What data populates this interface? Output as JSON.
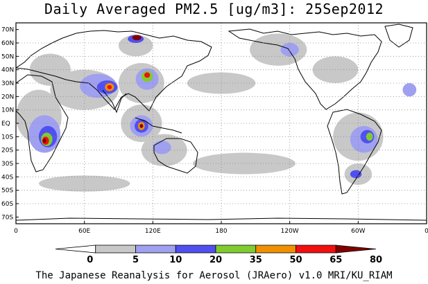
{
  "title": "Daily Averaged PM2.5 [ug/m3]: 25Sep2012",
  "footer": "The Japanese Reanalysis for Aerosol (JRAero) v1.0 MRI/KU_RIAM",
  "map": {
    "projection": "equirectangular",
    "lon_range": [
      0,
      360
    ],
    "lat_range": [
      -75,
      75
    ],
    "lat_ticks": [
      "70N",
      "60N",
      "50N",
      "40N",
      "30N",
      "20N",
      "10N",
      "EQ",
      "10S",
      "20S",
      "30S",
      "40S",
      "50S",
      "60S",
      "70S"
    ],
    "lon_ticks": [
      "0",
      "60E",
      "120E",
      "180",
      "120W",
      "60W",
      "0"
    ],
    "grid": "dotted"
  },
  "colorbar": {
    "levels": [
      "0",
      "5",
      "10",
      "20",
      "35",
      "50",
      "65",
      "80"
    ],
    "colors": [
      "#ffffff",
      "#c8c8c8",
      "#a0a0f0",
      "#5050f0",
      "#80cc30",
      "#f09000",
      "#f01010",
      "#800000"
    ]
  },
  "field_regions": [
    {
      "level": 1,
      "lon": 30,
      "lat": 40,
      "rx": 18,
      "ry": 12
    },
    {
      "level": 1,
      "lon": 20,
      "lat": 5,
      "rx": 20,
      "ry": 20
    },
    {
      "level": 2,
      "lon": 25,
      "lat": -8,
      "rx": 14,
      "ry": 14
    },
    {
      "level": 3,
      "lon": 28,
      "lat": -10,
      "rx": 8,
      "ry": 8
    },
    {
      "level": 4,
      "lon": 27,
      "lat": -12,
      "rx": 5,
      "ry": 5
    },
    {
      "level": 6,
      "lon": 26,
      "lat": -13,
      "rx": 3,
      "ry": 3
    },
    {
      "level": 7,
      "lon": 25,
      "lat": -13,
      "rx": 1.6,
      "ry": 1.6
    },
    {
      "level": 1,
      "lon": 60,
      "lat": 25,
      "rx": 30,
      "ry": 15
    },
    {
      "level": 2,
      "lon": 72,
      "lat": 28,
      "rx": 16,
      "ry": 9
    },
    {
      "level": 3,
      "lon": 80,
      "lat": 27,
      "rx": 9,
      "ry": 5
    },
    {
      "level": 5,
      "lon": 82,
      "lat": 27,
      "rx": 4,
      "ry": 3
    },
    {
      "level": 6,
      "lon": 82,
      "lat": 27,
      "rx": 2,
      "ry": 1.6
    },
    {
      "level": 1,
      "lon": 110,
      "lat": 30,
      "rx": 20,
      "ry": 15
    },
    {
      "level": 2,
      "lon": 115,
      "lat": 33,
      "rx": 10,
      "ry": 8
    },
    {
      "level": 4,
      "lon": 115,
      "lat": 35,
      "rx": 5,
      "ry": 4
    },
    {
      "level": 6,
      "lon": 115,
      "lat": 36,
      "rx": 2.5,
      "ry": 2
    },
    {
      "level": 1,
      "lon": 105,
      "lat": 58,
      "rx": 15,
      "ry": 8
    },
    {
      "level": 3,
      "lon": 105,
      "lat": 63,
      "rx": 7,
      "ry": 3
    },
    {
      "level": 7,
      "lon": 106,
      "lat": 64,
      "rx": 4,
      "ry": 2
    },
    {
      "level": 1,
      "lon": 110,
      "lat": 0,
      "rx": 18,
      "ry": 14
    },
    {
      "level": 2,
      "lon": 110,
      "lat": -2,
      "rx": 10,
      "ry": 8
    },
    {
      "level": 3,
      "lon": 110,
      "lat": -2,
      "rx": 6,
      "ry": 5
    },
    {
      "level": 5,
      "lon": 110,
      "lat": -2,
      "rx": 3,
      "ry": 3
    },
    {
      "level": 7,
      "lon": 110,
      "lat": -2,
      "rx": 1.5,
      "ry": 1.5
    },
    {
      "level": 1,
      "lon": 130,
      "lat": -20,
      "rx": 20,
      "ry": 12
    },
    {
      "level": 2,
      "lon": 128,
      "lat": -18,
      "rx": 8,
      "ry": 5
    },
    {
      "level": 1,
      "lon": 230,
      "lat": 55,
      "rx": 25,
      "ry": 12
    },
    {
      "level": 2,
      "lon": 240,
      "lat": 55,
      "rx": 8,
      "ry": 5
    },
    {
      "level": 1,
      "lon": 300,
      "lat": -10,
      "rx": 22,
      "ry": 18
    },
    {
      "level": 2,
      "lon": 305,
      "lat": -12,
      "rx": 12,
      "ry": 10
    },
    {
      "level": 3,
      "lon": 308,
      "lat": -10,
      "rx": 6,
      "ry": 5
    },
    {
      "level": 4,
      "lon": 310,
      "lat": -10,
      "rx": 3,
      "ry": 3
    },
    {
      "level": 1,
      "lon": 300,
      "lat": -38,
      "rx": 12,
      "ry": 8
    },
    {
      "level": 3,
      "lon": 298,
      "lat": -38,
      "rx": 5,
      "ry": 3
    },
    {
      "level": 1,
      "lon": 200,
      "lat": -30,
      "rx": 45,
      "ry": 8
    },
    {
      "level": 1,
      "lon": 60,
      "lat": -45,
      "rx": 40,
      "ry": 6
    },
    {
      "level": 1,
      "lon": 180,
      "lat": 30,
      "rx": 30,
      "ry": 8
    },
    {
      "level": 1,
      "lon": 280,
      "lat": 40,
      "rx": 20,
      "ry": 10
    },
    {
      "level": 2,
      "lon": 345,
      "lat": 25,
      "rx": 6,
      "ry": 5
    }
  ]
}
